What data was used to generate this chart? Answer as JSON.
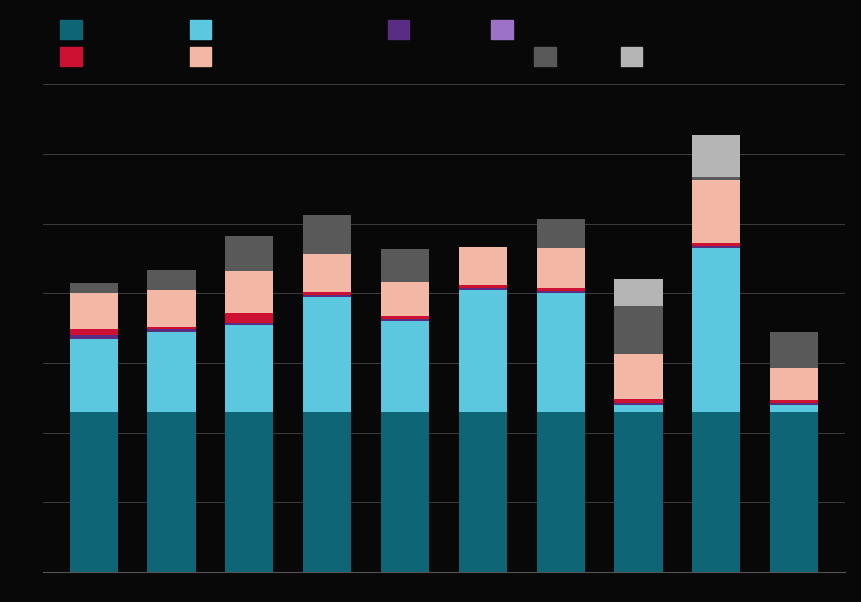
{
  "background_color": "#080808",
  "bar_width": 0.62,
  "colors": {
    "teal": "#0d6575",
    "light_blue": "#5bc8e0",
    "dark_purple": "#5a2d82",
    "red": "#cc1133",
    "peach": "#f2b8a5",
    "dark_gray": "#595959",
    "light_gray": "#b5b5b5"
  },
  "legend_colors_row1": [
    "#0d6575",
    "#5bc8e0",
    "#5a2d82",
    "#9b72c8"
  ],
  "legend_colors_row2": [
    "#cc1133",
    "#f2b8a5",
    "#595959",
    "#b5b5b5"
  ],
  "bar_data": [
    {
      "teal": 230,
      "light_blue": 105,
      "dark_purple": 5,
      "red": 8,
      "peach": 52,
      "dark_gray": 15,
      "light_gray": 0
    },
    {
      "teal": 230,
      "light_blue": 115,
      "dark_purple": 4,
      "red": 3,
      "peach": 52,
      "dark_gray": 30,
      "light_gray": 0
    },
    {
      "teal": 230,
      "light_blue": 125,
      "dark_purple": 3,
      "red": 14,
      "peach": 60,
      "dark_gray": 50,
      "light_gray": 0
    },
    {
      "teal": 230,
      "light_blue": 165,
      "dark_purple": 3,
      "red": 4,
      "peach": 55,
      "dark_gray": 55,
      "light_gray": 0
    },
    {
      "teal": 230,
      "light_blue": 130,
      "dark_purple": 3,
      "red": 5,
      "peach": 48,
      "dark_gray": 48,
      "light_gray": 0
    },
    {
      "teal": 230,
      "light_blue": 175,
      "dark_purple": 3,
      "red": 4,
      "peach": 55,
      "dark_gray": 0,
      "light_gray": 0
    },
    {
      "teal": 230,
      "light_blue": 170,
      "dark_purple": 3,
      "red": 4,
      "peach": 58,
      "dark_gray": 42,
      "light_gray": 0
    },
    {
      "teal": 230,
      "light_blue": 10,
      "dark_purple": 3,
      "red": 5,
      "peach": 65,
      "dark_gray": 68,
      "light_gray": 40
    },
    {
      "teal": 230,
      "light_blue": 235,
      "dark_purple": 3,
      "red": 4,
      "peach": 90,
      "dark_gray": 5,
      "light_gray": 60
    },
    {
      "teal": 230,
      "light_blue": 10,
      "dark_purple": 3,
      "red": 4,
      "peach": 45,
      "dark_gray": 52,
      "light_gray": 0
    }
  ],
  "ylim": [
    0,
    700
  ],
  "yticks": [
    0,
    100,
    200,
    300,
    400,
    500,
    600,
    700
  ],
  "gridcolor": "#444444",
  "gridlinewidth": 0.6
}
